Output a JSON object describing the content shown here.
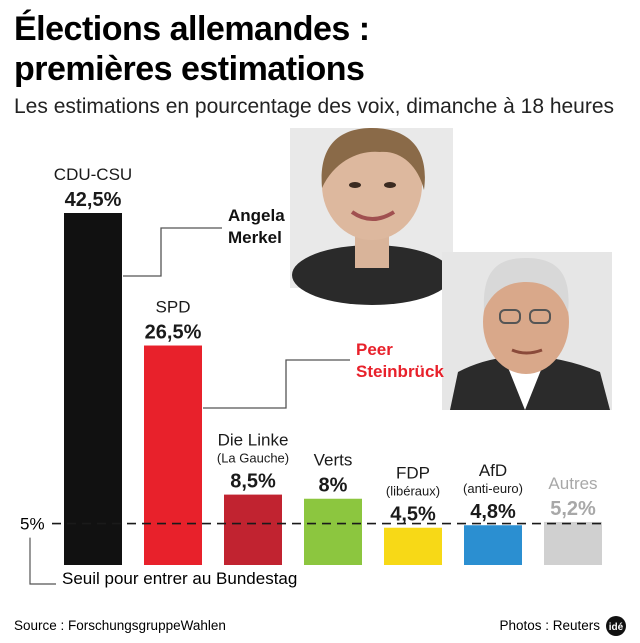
{
  "title_line1": "Élections allemandes :",
  "title_line2": "premières estimations",
  "subtitle": "Les estimations en pourcentage des voix, dimanche à 18 heures",
  "threshold_label": "5%",
  "threshold_caption": "Seuil pour entrer au Bundestag",
  "source": "Source : ForschungsgruppeWahlen",
  "photos_credit": "Photos : Reuters",
  "logo_text": "idé",
  "people": [
    {
      "line1": "Angela",
      "line2": "Merkel",
      "color": "#111111"
    },
    {
      "line1": "Peer",
      "line2": "Steinbrück",
      "color": "#e8212b"
    }
  ],
  "chart_data": {
    "type": "bar",
    "title": "Élections allemandes : premières estimations",
    "subtitle": "Les estimations en pourcentage des voix, dimanche à 18 heures",
    "ylabel": "%",
    "ylim": [
      0,
      45
    ],
    "threshold": 5,
    "categories": [
      "CDU-CSU",
      "SPD",
      "Die Linke",
      "Verts",
      "FDP",
      "AfD",
      "Autres"
    ],
    "sublabels": [
      "",
      "",
      "(La Gauche)",
      "",
      "(libéraux)",
      "(anti-euro)",
      ""
    ],
    "values": [
      42.5,
      26.5,
      8.5,
      8,
      4.5,
      4.8,
      5.2
    ],
    "value_labels": [
      "42,5%",
      "26,5%",
      "8,5%",
      "8%",
      "4,5%",
      "4,8%",
      "5,2%"
    ],
    "colors": [
      "#111111",
      "#e8212b",
      "#c12330",
      "#8cc63f",
      "#f7d917",
      "#2b8fd1",
      "#d0d0d0"
    ],
    "label_colors": [
      "#1a1a1a",
      "#1a1a1a",
      "#1a1a1a",
      "#1a1a1a",
      "#1a1a1a",
      "#1a1a1a",
      "#a8a8a8"
    ]
  }
}
